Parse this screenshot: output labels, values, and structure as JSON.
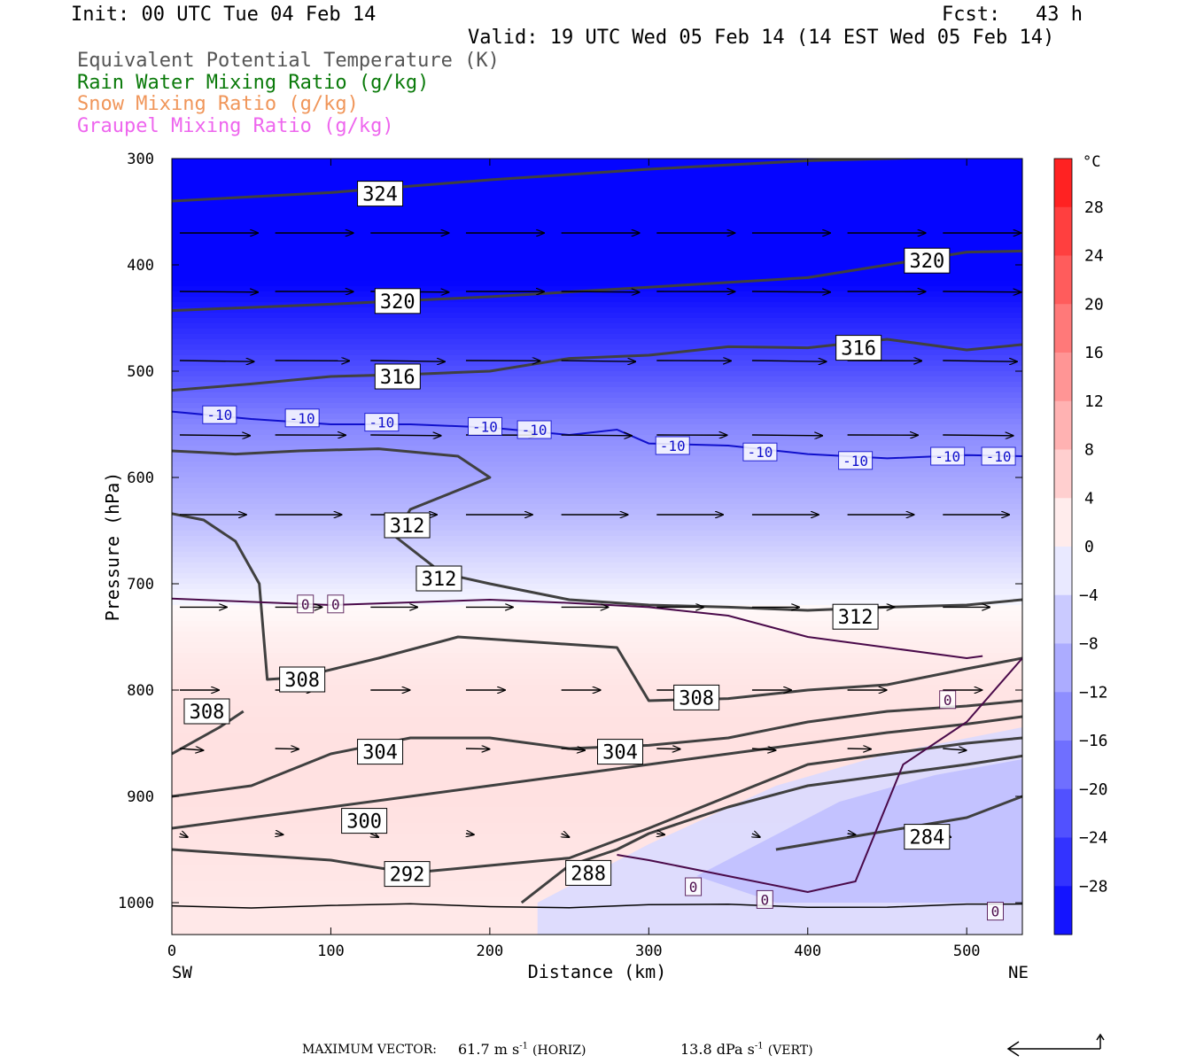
{
  "header": {
    "init": "Init: 00 UTC Tue 04 Feb 14",
    "fcst": "Fcst:   43 h",
    "valid": "Valid: 19 UTC Wed 05 Feb 14 (14 EST Wed 05 Feb 14)"
  },
  "legend": [
    {
      "text": "Equivalent Potential Temperature (K)",
      "color": "#555555"
    },
    {
      "text": "Rain Water Mixing Ratio (g/kg)",
      "color": "#0a7a0a"
    },
    {
      "text": "Snow Mixing Ratio (g/kg)",
      "color": "#f0965a"
    },
    {
      "text": "Graupel Mixing Ratio (g/kg)",
      "color": "#ee66ee"
    }
  ],
  "footer": {
    "max_vector_label": "MAXIMUM VECTOR:",
    "horiz_value": "61.7 m s",
    "horiz_unit": "(HORIZ)",
    "vert_value": "13.8 dPa s",
    "vert_unit": "(VERT)",
    "exp": "-1"
  },
  "chart_data": {
    "type": "cross-section",
    "xlabel": "Distance (km)",
    "ylabel": "Pressure (hPa)",
    "x_ticks": [
      0,
      100,
      200,
      300,
      400,
      500
    ],
    "y_ticks": [
      300,
      400,
      500,
      600,
      700,
      800,
      900,
      1000
    ],
    "xlim": [
      0,
      535
    ],
    "ylim": [
      300,
      1030
    ],
    "y_inverted": true,
    "x_end_labels": {
      "left": "SW",
      "right": "NE"
    },
    "temperature_field": {
      "unit_label": "°C",
      "colorbar_labels": [
        28,
        24,
        20,
        16,
        12,
        8,
        4,
        0,
        -4,
        -8,
        -12,
        -16,
        -20,
        -24,
        -28
      ],
      "colorbar_range": [
        -32,
        32
      ],
      "profile_pressure": [
        300,
        350,
        400,
        450,
        500,
        550,
        600,
        650,
        700,
        720,
        750,
        800,
        850,
        900,
        950,
        1000,
        1030
      ],
      "profile_temp": [
        -46,
        -40,
        -34,
        -28,
        -22,
        -15,
        -11,
        -7,
        -2,
        0,
        1.5,
        3,
        3.5,
        3.5,
        3,
        2.5,
        2.5
      ],
      "cold_wedge_note": "colder air near surface toward NE"
    },
    "theta_e_contours": [
      {
        "label": "324",
        "x": [
          0,
          100,
          200,
          300,
          400,
          500,
          535
        ],
        "p": [
          340,
          332,
          320,
          310,
          302,
          298,
          297
        ]
      },
      {
        "label": "320",
        "x": [
          0,
          100,
          200,
          300,
          400,
          450,
          500,
          535
        ],
        "p": [
          443,
          437,
          430,
          421,
          412,
          400,
          388,
          387
        ]
      },
      {
        "label": "316",
        "x": [
          0,
          50,
          100,
          150,
          200,
          250,
          300,
          350,
          400,
          450,
          500,
          535
        ],
        "p": [
          518,
          512,
          505,
          503,
          500,
          488,
          485,
          477,
          478,
          470,
          480,
          475
        ]
      },
      {
        "label": "312",
        "x": [
          0,
          40,
          80,
          130,
          180,
          200,
          150,
          140,
          170,
          200,
          250,
          300,
          350,
          400,
          450,
          500,
          535
        ],
        "p": [
          575,
          578,
          575,
          573,
          580,
          600,
          630,
          655,
          690,
          700,
          715,
          720,
          722,
          725,
          722,
          720,
          715
        ]
      },
      {
        "label": "308",
        "x": [
          0,
          20,
          40,
          55,
          60,
          80,
          130,
          180,
          230,
          280,
          300,
          350,
          400,
          450,
          500,
          535
        ],
        "p": [
          634,
          640,
          660,
          700,
          790,
          788,
          770,
          750,
          755,
          760,
          810,
          808,
          800,
          795,
          780,
          770
        ]
      },
      {
        "label": "308",
        "x": [
          0,
          30,
          45
        ],
        "p": [
          860,
          835,
          820
        ]
      },
      {
        "label": "304",
        "x": [
          0,
          50,
          100,
          150,
          200,
          250,
          300,
          350,
          400,
          450,
          500,
          535
        ],
        "p": [
          900,
          890,
          860,
          845,
          845,
          855,
          852,
          845,
          830,
          820,
          815,
          810
        ]
      },
      {
        "label": "300",
        "x": [
          0,
          50,
          100,
          150,
          200,
          250,
          300,
          350,
          400,
          450,
          500,
          535
        ],
        "p": [
          930,
          920,
          910,
          900,
          890,
          880,
          870,
          860,
          850,
          840,
          832,
          825
        ]
      },
      {
        "label": "292",
        "x": [
          0,
          50,
          100,
          150,
          200,
          250,
          300,
          350,
          400,
          450,
          500,
          535
        ],
        "p": [
          950,
          955,
          960,
          972,
          965,
          958,
          930,
          900,
          870,
          860,
          850,
          845
        ]
      },
      {
        "label": "288",
        "x": [
          220,
          250,
          280,
          300,
          350,
          400,
          450,
          500,
          535
        ],
        "p": [
          1000,
          965,
          950,
          935,
          910,
          890,
          880,
          870,
          862
        ]
      },
      {
        "label": "284",
        "x": [
          380,
          420,
          460,
          500,
          535
        ],
        "p": [
          950,
          940,
          930,
          920,
          900
        ]
      }
    ],
    "temp_isotherms": [
      {
        "label": "-10",
        "color": "#1010cc",
        "x": [
          0,
          50,
          100,
          150,
          200,
          250,
          280,
          300,
          350,
          400,
          450,
          500,
          535
        ],
        "p": [
          538,
          545,
          550,
          550,
          553,
          560,
          555,
          568,
          570,
          578,
          582,
          579,
          580
        ]
      },
      {
        "label": "0",
        "color": "#4a0a4a",
        "x": [
          0,
          100,
          200,
          250,
          300,
          350,
          400,
          450,
          500,
          510
        ],
        "p": [
          714,
          720,
          715,
          718,
          722,
          730,
          750,
          760,
          770,
          768
        ]
      },
      {
        "label": "0",
        "color": "#4a0a4a",
        "x": [
          280,
          300,
          350,
          400,
          430,
          460,
          500,
          535
        ],
        "p": [
          955,
          960,
          975,
          990,
          980,
          870,
          830,
          770
        ]
      }
    ],
    "wind_vectors": [
      {
        "p": 370,
        "u": 1.0,
        "w": 0.0
      },
      {
        "p": 425,
        "u": 1.0,
        "w": 0.02
      },
      {
        "p": 490,
        "u": 0.95,
        "w": 0.03
      },
      {
        "p": 560,
        "u": 0.9,
        "w": 0.02
      },
      {
        "p": 635,
        "u": 0.85,
        "w": 0.0
      },
      {
        "p": 722,
        "u": 0.6,
        "w": 0.0
      },
      {
        "p": 800,
        "u": 0.5,
        "w": 0.0
      },
      {
        "p": 855,
        "u": 0.3,
        "w": 0.05
      },
      {
        "p": 935,
        "u": 0.1,
        "w": 0.1
      }
    ],
    "label_boxes": [
      {
        "t": "324",
        "x": 131,
        "p": 333
      },
      {
        "t": "320",
        "x": 475,
        "p": 396
      },
      {
        "t": "320",
        "x": 142,
        "p": 434
      },
      {
        "t": "316",
        "x": 432,
        "p": 478
      },
      {
        "t": "316",
        "x": 142,
        "p": 505
      },
      {
        "t": "312",
        "x": 148,
        "p": 645
      },
      {
        "t": "312",
        "x": 168,
        "p": 695
      },
      {
        "t": "312",
        "x": 430,
        "p": 731
      },
      {
        "t": "308",
        "x": 82,
        "p": 790
      },
      {
        "t": "308",
        "x": 22,
        "p": 820
      },
      {
        "t": "308",
        "x": 330,
        "p": 807
      },
      {
        "t": "304",
        "x": 131,
        "p": 858
      },
      {
        "t": "304",
        "x": 282,
        "p": 858
      },
      {
        "t": "300",
        "x": 121,
        "p": 923
      },
      {
        "t": "292",
        "x": 148,
        "p": 973
      },
      {
        "t": "288",
        "x": 262,
        "p": 972
      },
      {
        "t": "284",
        "x": 475,
        "p": 938
      }
    ],
    "small_labels": [
      {
        "t": "-10",
        "x": 30,
        "p": 541,
        "c": "#1010cc"
      },
      {
        "t": "-10",
        "x": 82,
        "p": 544,
        "c": "#1010cc"
      },
      {
        "t": "-10",
        "x": 132,
        "p": 548,
        "c": "#1010cc"
      },
      {
        "t": "-10",
        "x": 197,
        "p": 552,
        "c": "#1010cc"
      },
      {
        "t": "-10",
        "x": 228,
        "p": 555,
        "c": "#1010cc"
      },
      {
        "t": "-10",
        "x": 315,
        "p": 570,
        "c": "#1010cc"
      },
      {
        "t": "-10",
        "x": 370,
        "p": 576,
        "c": "#1010cc"
      },
      {
        "t": "-10",
        "x": 430,
        "p": 584,
        "c": "#1010cc"
      },
      {
        "t": "-10",
        "x": 488,
        "p": 580,
        "c": "#1010cc"
      },
      {
        "t": "-10",
        "x": 520,
        "p": 580,
        "c": "#1010cc"
      },
      {
        "t": "0",
        "x": 84,
        "p": 719,
        "c": "#4a0a4a"
      },
      {
        "t": "0",
        "x": 103,
        "p": 719,
        "c": "#4a0a4a"
      },
      {
        "t": "0",
        "x": 488,
        "p": 809,
        "c": "#4a0a4a"
      },
      {
        "t": "0",
        "x": 328,
        "p": 985,
        "c": "#4a0a4a"
      },
      {
        "t": "0",
        "x": 373,
        "p": 997,
        "c": "#4a0a4a"
      },
      {
        "t": "0",
        "x": 518,
        "p": 1008,
        "c": "#4a0a4a"
      }
    ]
  }
}
